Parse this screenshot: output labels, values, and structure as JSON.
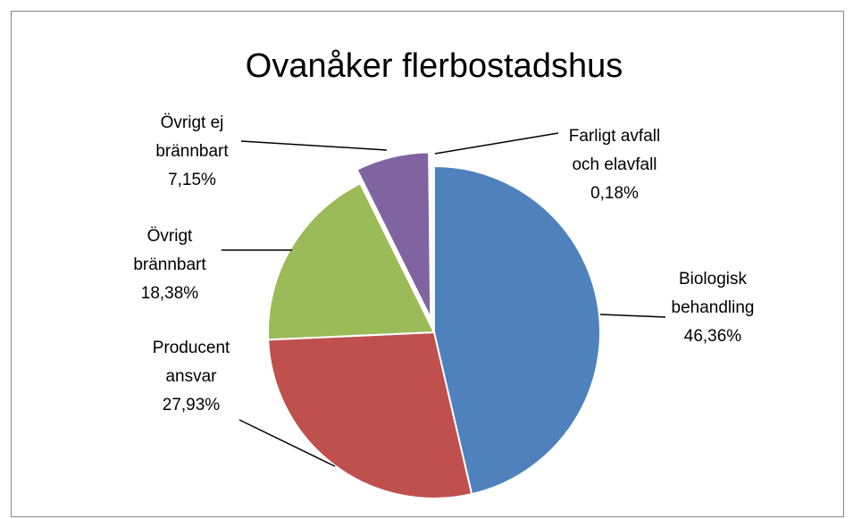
{
  "chart_data": {
    "type": "pie",
    "title": "Ovanåker flerbostadshus",
    "categories": [
      "Biologisk behandling",
      "Producent ansvar",
      "Övrigt brännbart",
      "Övrigt ej brännbart",
      "Farligt avfall och elavfall"
    ],
    "values": [
      46.36,
      27.93,
      18.38,
      7.15,
      0.18
    ],
    "value_labels": [
      "46,36%",
      "27,93%",
      "18,38%",
      "7,15%",
      "0,18%"
    ],
    "colors": [
      "#4f81bd",
      "#c0504d",
      "#9bbb59",
      "#8064a2",
      "#4bacc6"
    ],
    "exploded": [
      3
    ]
  }
}
